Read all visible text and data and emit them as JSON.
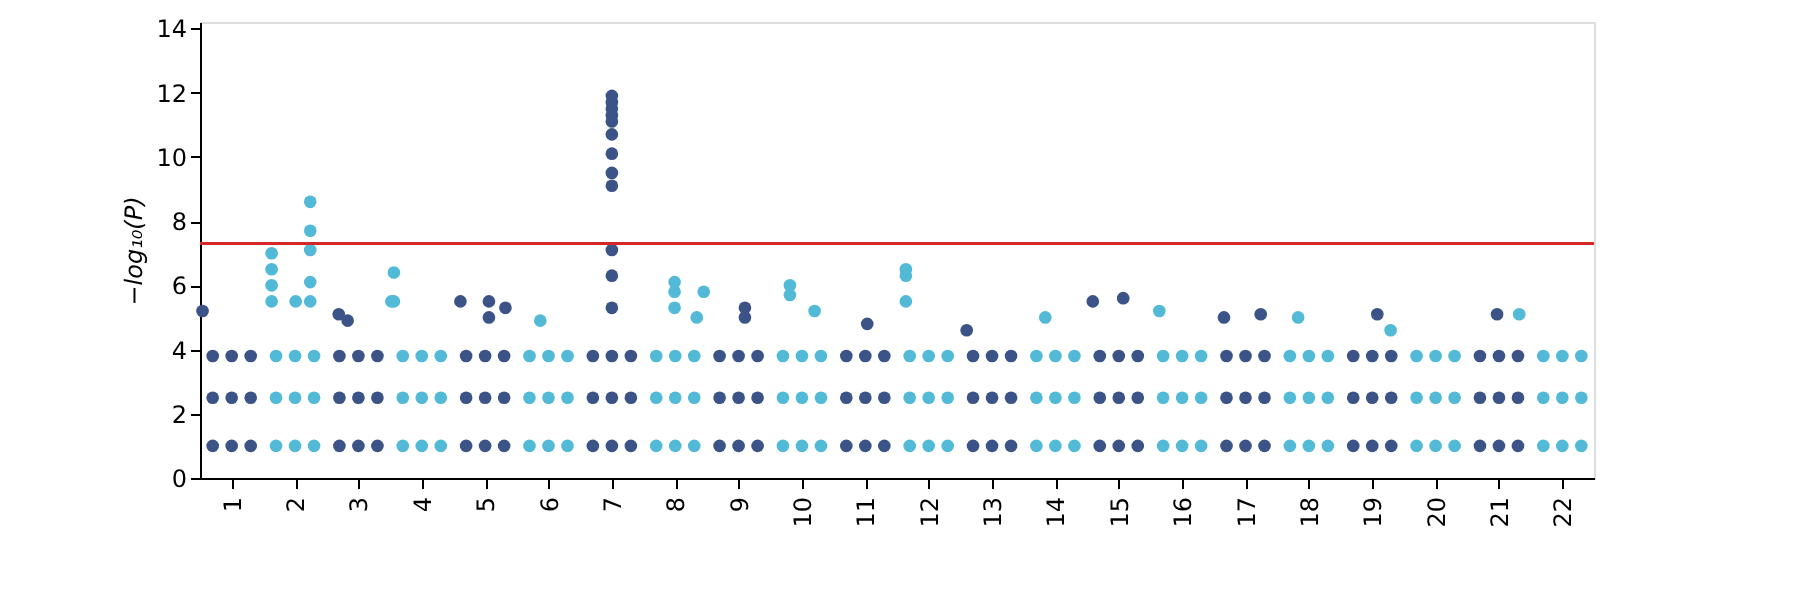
{
  "chart_data": {
    "type": "scatter",
    "ylabel": "−log₁₀(P)",
    "marker": "circle",
    "grid": false,
    "xlim": [
      0.5,
      22.5
    ],
    "ylim": [
      0,
      14.2
    ],
    "xticks": [
      1,
      2,
      3,
      4,
      5,
      6,
      7,
      8,
      9,
      10,
      11,
      12,
      13,
      14,
      15,
      16,
      17,
      18,
      19,
      20,
      21,
      22
    ],
    "yticks": [
      0,
      2,
      4,
      6,
      8,
      10,
      12,
      14
    ],
    "ref_lines": [
      {
        "axis": "y",
        "value": 7.3,
        "color": "#d62728"
      }
    ],
    "series": [
      {
        "color": "#3b5387",
        "x": [
          0.7,
          0.7,
          0.7,
          1.0,
          1.0,
          1.0,
          1.3,
          1.3,
          1.3,
          0.54,
          2.7,
          2.7,
          2.7,
          3.0,
          3.0,
          3.0,
          3.3,
          3.3,
          3.3,
          2.69,
          2.83,
          4.7,
          4.7,
          4.7,
          5.0,
          5.0,
          5.0,
          5.3,
          5.3,
          5.3,
          4.61,
          5.06,
          5.06,
          5.32,
          6.7,
          6.7,
          6.7,
          7.0,
          7.0,
          7.0,
          7.3,
          7.3,
          7.3,
          7.0,
          7.0,
          7.0,
          7.0,
          7.0,
          7.0,
          7.0,
          7.0,
          7.0,
          7.0,
          7.0,
          7.0,
          8.7,
          8.7,
          8.7,
          9.0,
          9.0,
          9.0,
          9.3,
          9.3,
          9.3,
          9.1,
          9.1,
          10.7,
          10.7,
          10.7,
          11.0,
          11.0,
          11.0,
          11.3,
          11.3,
          11.3,
          11.03,
          12.7,
          12.7,
          12.7,
          13.0,
          13.0,
          13.0,
          13.3,
          13.3,
          13.3,
          12.6,
          14.7,
          14.7,
          14.7,
          15.0,
          15.0,
          15.0,
          15.3,
          15.3,
          15.3,
          14.59,
          15.07,
          16.7,
          16.7,
          16.7,
          17.0,
          17.0,
          17.0,
          17.3,
          17.3,
          17.3,
          16.66,
          17.24,
          18.7,
          18.7,
          18.7,
          19.0,
          19.0,
          19.0,
          19.3,
          19.3,
          19.3,
          19.08,
          20.7,
          20.7,
          20.7,
          21.0,
          21.0,
          21.0,
          21.3,
          21.3,
          21.3,
          20.97
        ],
        "values": [
          1,
          2.5,
          3.8,
          1,
          2.5,
          3.8,
          1,
          2.5,
          3.8,
          5.2,
          1,
          2.5,
          3.8,
          1,
          2.5,
          3.8,
          1,
          2.5,
          3.8,
          5.1,
          4.9,
          1,
          2.5,
          3.8,
          1,
          2.5,
          3.8,
          1,
          2.5,
          3.8,
          5.5,
          5.5,
          5.0,
          5.3,
          1,
          2.5,
          3.8,
          1,
          2.5,
          3.8,
          1,
          2.5,
          3.8,
          11.9,
          11.7,
          11.5,
          11.3,
          11.1,
          10.7,
          10.1,
          9.5,
          9.1,
          7.1,
          6.3,
          5.3,
          1,
          2.5,
          3.8,
          1,
          2.5,
          3.8,
          1,
          2.5,
          3.8,
          5.3,
          5.0,
          1,
          2.5,
          3.8,
          1,
          2.5,
          3.8,
          1,
          2.5,
          3.8,
          4.8,
          1,
          2.5,
          3.8,
          1,
          2.5,
          3.8,
          1,
          2.5,
          3.8,
          4.6,
          1,
          2.5,
          3.8,
          1,
          2.5,
          3.8,
          1,
          2.5,
          3.8,
          5.5,
          5.6,
          1,
          2.5,
          3.8,
          1,
          2.5,
          3.8,
          1,
          2.5,
          3.8,
          5.0,
          5.1,
          1,
          2.5,
          3.8,
          1,
          2.5,
          3.8,
          1,
          2.5,
          3.8,
          5.1,
          1,
          2.5,
          3.8,
          1,
          2.5,
          3.8,
          1,
          2.5,
          3.8,
          5.1
        ]
      },
      {
        "color": "#52bad7",
        "x": [
          1.7,
          1.7,
          1.7,
          2.0,
          2.0,
          2.0,
          2.3,
          2.3,
          2.3,
          1.63,
          1.63,
          1.63,
          1.63,
          2.01,
          2.24,
          2.24,
          2.24,
          2.24,
          2.24,
          3.7,
          3.7,
          3.7,
          4.0,
          4.0,
          4.0,
          4.3,
          4.3,
          4.3,
          3.56,
          3.56,
          3.52,
          5.7,
          5.7,
          5.7,
          6.0,
          6.0,
          6.0,
          6.3,
          6.3,
          6.3,
          5.87,
          7.7,
          7.7,
          7.7,
          8.0,
          8.0,
          8.0,
          8.3,
          8.3,
          8.3,
          7.99,
          7.99,
          7.99,
          8.34,
          8.45,
          9.7,
          9.7,
          9.7,
          10.0,
          10.0,
          10.0,
          10.3,
          10.3,
          10.3,
          9.81,
          9.81,
          10.2,
          11.7,
          11.7,
          11.7,
          12.0,
          12.0,
          12.0,
          12.3,
          12.3,
          12.3,
          11.64,
          11.64,
          11.64,
          13.7,
          13.7,
          13.7,
          14.0,
          14.0,
          14.0,
          14.3,
          14.3,
          14.3,
          13.84,
          15.7,
          15.7,
          15.7,
          16.0,
          16.0,
          16.0,
          16.3,
          16.3,
          16.3,
          15.64,
          17.7,
          17.7,
          17.7,
          18.0,
          18.0,
          18.0,
          18.3,
          18.3,
          18.3,
          17.83,
          19.7,
          19.7,
          19.7,
          20.0,
          20.0,
          20.0,
          20.3,
          20.3,
          20.3,
          19.29,
          21.7,
          21.7,
          21.7,
          22.0,
          22.0,
          22.0,
          22.3,
          22.3,
          22.3,
          21.32
        ],
        "values": [
          1,
          2.5,
          3.8,
          1,
          2.5,
          3.8,
          1,
          2.5,
          3.8,
          7.0,
          6.5,
          6.0,
          5.5,
          5.5,
          8.6,
          7.7,
          7.1,
          6.1,
          5.5,
          1,
          2.5,
          3.8,
          1,
          2.5,
          3.8,
          1,
          2.5,
          3.8,
          6.4,
          5.5,
          5.5,
          1,
          2.5,
          3.8,
          1,
          2.5,
          3.8,
          1,
          2.5,
          3.8,
          4.9,
          1,
          2.5,
          3.8,
          1,
          2.5,
          3.8,
          1,
          2.5,
          3.8,
          6.1,
          5.8,
          5.3,
          5.0,
          5.8,
          1,
          2.5,
          3.8,
          1,
          2.5,
          3.8,
          1,
          2.5,
          3.8,
          6.0,
          5.7,
          5.2,
          1,
          2.5,
          3.8,
          1,
          2.5,
          3.8,
          1,
          2.5,
          3.8,
          6.5,
          6.3,
          5.5,
          1,
          2.5,
          3.8,
          1,
          2.5,
          3.8,
          1,
          2.5,
          3.8,
          5.0,
          1,
          2.5,
          3.8,
          1,
          2.5,
          3.8,
          1,
          2.5,
          3.8,
          5.2,
          1,
          2.5,
          3.8,
          1,
          2.5,
          3.8,
          1,
          2.5,
          3.8,
          5.0,
          1,
          2.5,
          3.8,
          1,
          2.5,
          3.8,
          1,
          2.5,
          3.8,
          4.6,
          1,
          2.5,
          3.8,
          1,
          2.5,
          3.8,
          1,
          2.5,
          3.8,
          5.1
        ]
      }
    ]
  }
}
